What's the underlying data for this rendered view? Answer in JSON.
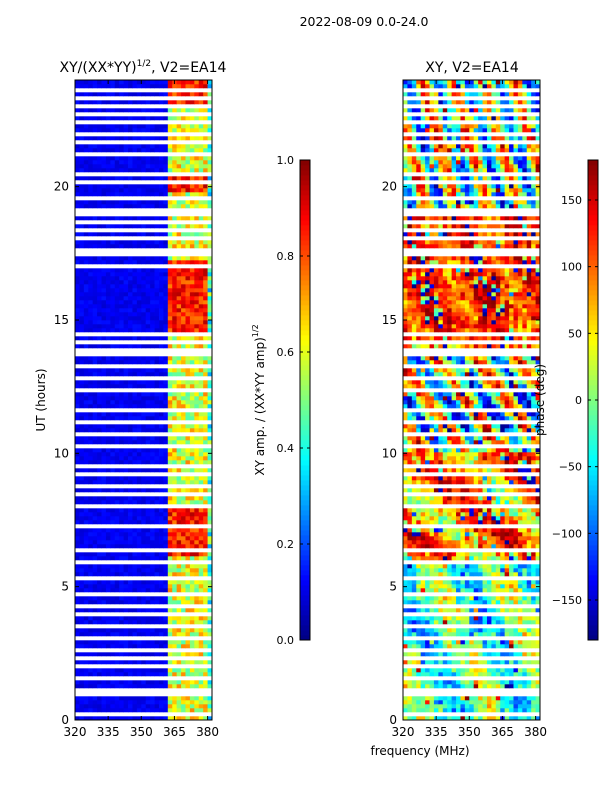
{
  "figure_title": "2022-08-09 0.0-24.0",
  "colors": {
    "jet_low": "#00007f",
    "jet_high": "#7f0000",
    "flag": "#ffffff",
    "axis": "#000000"
  },
  "chart_data": [
    {
      "type": "heatmap",
      "title": "XY/(XX*YY)",
      "title_exponent": "1/2",
      "title_suffix": ", V2=EA14",
      "xlabel": "",
      "ylabel": "UT (hours)",
      "xlim": [
        320,
        382
      ],
      "ylim": [
        0,
        24
      ],
      "xticks": [
        "320",
        "335",
        "350",
        "365",
        "380"
      ],
      "xtick_values": [
        320,
        335,
        350,
        365,
        380
      ],
      "yticks": [
        "0",
        "5",
        "10",
        "15",
        "20"
      ],
      "ytick_values": [
        0,
        5,
        10,
        15,
        20
      ],
      "colorbar": {
        "label": "XY amp. / (XX*YY amp)",
        "label_exponent": "1/2",
        "range": [
          0.0,
          1.0
        ],
        "ticks": [
          "0.0",
          "0.2",
          "0.4",
          "0.6",
          "0.8",
          "1.0"
        ],
        "tick_values": [
          0.0,
          0.2,
          0.4,
          0.6,
          0.8,
          1.0
        ]
      },
      "flagged_ut_hours": [
        0.25,
        0.95,
        1.1,
        1.6,
        2.0,
        2.3,
        2.6,
        3.0,
        3.05,
        3.5,
        3.9,
        4.3,
        4.8,
        5.3,
        5.9,
        6.4,
        7.3,
        8.0,
        8.4,
        8.8,
        9.2,
        9.6,
        10.3,
        10.7,
        11.2,
        11.6,
        12.3,
        12.8,
        13.3,
        13.7,
        13.95,
        14.2,
        14.5,
        17.0,
        17.4,
        17.7,
        18.0,
        18.3,
        18.6,
        19.0,
        19.2,
        19.5,
        20.2,
        20.4,
        21.2,
        21.6,
        22.0,
        22.4,
        22.7,
        23.0,
        23.3,
        23.6
      ],
      "bright_bands_ut": [
        [
          6.2,
          8.0
        ],
        [
          14.4,
          17.2
        ],
        [
          23.0,
          24.0
        ],
        [
          19.8,
          20.4
        ]
      ],
      "bright_channels_mhz": [
        [
          363,
          368
        ],
        [
          369,
          374
        ],
        [
          375,
          379
        ]
      ]
    },
    {
      "type": "heatmap",
      "title": "XY, V2=EA14",
      "xlabel": "frequency (MHz)",
      "ylabel": "",
      "xlim": [
        320,
        382
      ],
      "ylim": [
        0,
        24
      ],
      "xticks": [
        "320",
        "335",
        "350",
        "365",
        "380"
      ],
      "xtick_values": [
        320,
        335,
        350,
        365,
        380
      ],
      "yticks": [
        "0",
        "5",
        "10",
        "15",
        "20"
      ],
      "ytick_values": [
        0,
        5,
        10,
        15,
        20
      ],
      "colorbar": {
        "label": "phase (deg)",
        "range": [
          -180,
          180
        ],
        "ticks": [
          "−150",
          "−100",
          "−50",
          "0",
          "50",
          "100",
          "150"
        ],
        "tick_values": [
          -150,
          -100,
          -50,
          0,
          50,
          100,
          150
        ]
      },
      "flagged_ut_hours": [
        0.25,
        0.95,
        1.1,
        1.6,
        2.0,
        2.3,
        2.6,
        3.0,
        3.05,
        3.5,
        3.9,
        4.3,
        4.8,
        5.3,
        5.9,
        6.4,
        7.3,
        8.0,
        8.4,
        8.8,
        9.2,
        9.6,
        10.3,
        10.7,
        11.2,
        11.6,
        12.3,
        12.8,
        13.3,
        13.7,
        13.95,
        14.2,
        14.5,
        17.0,
        17.4,
        17.7,
        18.0,
        18.3,
        18.6,
        19.0,
        19.2,
        19.5,
        20.2,
        20.4,
        21.2,
        21.6,
        22.0,
        22.4,
        22.7,
        23.0,
        23.3,
        23.6
      ]
    }
  ]
}
